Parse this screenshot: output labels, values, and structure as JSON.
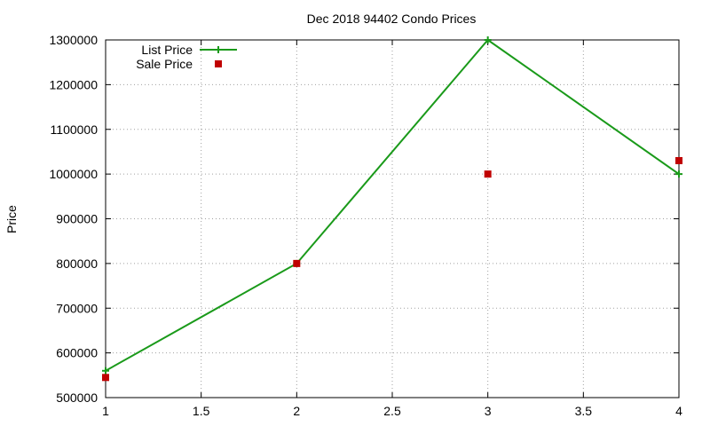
{
  "chart_data": {
    "type": "line",
    "title": "Dec 2018 94402 Condo Prices",
    "xlabel": "",
    "ylabel": "Price",
    "xlim": [
      1,
      4
    ],
    "ylim": [
      500000,
      1300000
    ],
    "x_ticks": [
      "1",
      "1.5",
      "2",
      "2.5",
      "3",
      "3.5",
      "4"
    ],
    "y_ticks": [
      "500000",
      "600000",
      "700000",
      "800000",
      "900000",
      "1000000",
      "1100000",
      "1200000",
      "1300000"
    ],
    "grid": true,
    "legend_position": "top-left",
    "series": [
      {
        "name": "List Price",
        "style": "linespoints",
        "marker": "plus",
        "color": "#1a9a1a",
        "x": [
          1,
          2,
          3,
          4
        ],
        "y": [
          560000,
          800000,
          1300000,
          1000000
        ]
      },
      {
        "name": "Sale Price",
        "style": "points",
        "marker": "square",
        "color": "#c00000",
        "x": [
          1,
          2,
          3,
          4
        ],
        "y": [
          545000,
          800000,
          1000000,
          1030000
        ]
      }
    ]
  }
}
